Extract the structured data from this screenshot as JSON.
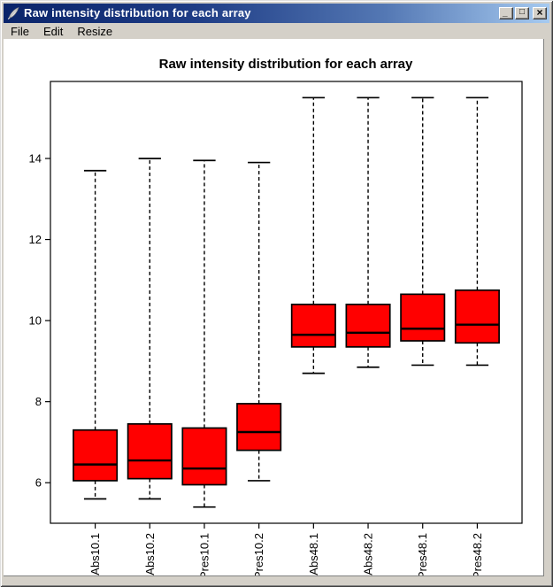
{
  "window": {
    "title": "Raw intensity distribution for each array",
    "icon": "r-feather-icon",
    "controls": {
      "minimize": "_",
      "maximize": "□",
      "close": "×"
    }
  },
  "menu": {
    "items": [
      {
        "label": "File"
      },
      {
        "label": "Edit"
      },
      {
        "label": "Resize"
      }
    ]
  },
  "colors": {
    "titlebar_left": "#0a246a",
    "titlebar_right": "#a6caf0",
    "frame": "#d4d0c8",
    "canvas": "#ffffff",
    "box_fill": "#ff0000",
    "box_stroke": "#000000"
  },
  "chart_data": {
    "type": "boxplot",
    "title": "Raw intensity distribution for each array",
    "xlabel": "",
    "ylabel": "",
    "ylim": [
      5.0,
      15.9
    ],
    "yticks": [
      6,
      8,
      10,
      12,
      14
    ],
    "grid": false,
    "legend": false,
    "whisker_style": "dashed",
    "categories": [
      "Abs10.1",
      "Abs10.2",
      "Pres10.1",
      "Pres10.2",
      "Abs48.1",
      "Abs48.2",
      "Pres48.1",
      "Pres48.2"
    ],
    "series": [
      {
        "name": "Abs10.1",
        "whisker_low": 5.6,
        "q1": 6.05,
        "median": 6.45,
        "q3": 7.3,
        "whisker_high": 13.7
      },
      {
        "name": "Abs10.2",
        "whisker_low": 5.6,
        "q1": 6.1,
        "median": 6.55,
        "q3": 7.45,
        "whisker_high": 14.0
      },
      {
        "name": "Pres10.1",
        "whisker_low": 5.4,
        "q1": 5.95,
        "median": 6.35,
        "q3": 7.35,
        "whisker_high": 13.95
      },
      {
        "name": "Pres10.2",
        "whisker_low": 6.05,
        "q1": 6.8,
        "median": 7.25,
        "q3": 7.95,
        "whisker_high": 13.9
      },
      {
        "name": "Abs48.1",
        "whisker_low": 8.7,
        "q1": 9.35,
        "median": 9.65,
        "q3": 10.4,
        "whisker_high": 15.5
      },
      {
        "name": "Abs48.2",
        "whisker_low": 8.85,
        "q1": 9.35,
        "median": 9.7,
        "q3": 10.4,
        "whisker_high": 15.5
      },
      {
        "name": "Pres48.1",
        "whisker_low": 8.9,
        "q1": 9.5,
        "median": 9.8,
        "q3": 10.65,
        "whisker_high": 15.5
      },
      {
        "name": "Pres48.2",
        "whisker_low": 8.9,
        "q1": 9.45,
        "median": 9.9,
        "q3": 10.75,
        "whisker_high": 15.5
      }
    ]
  }
}
